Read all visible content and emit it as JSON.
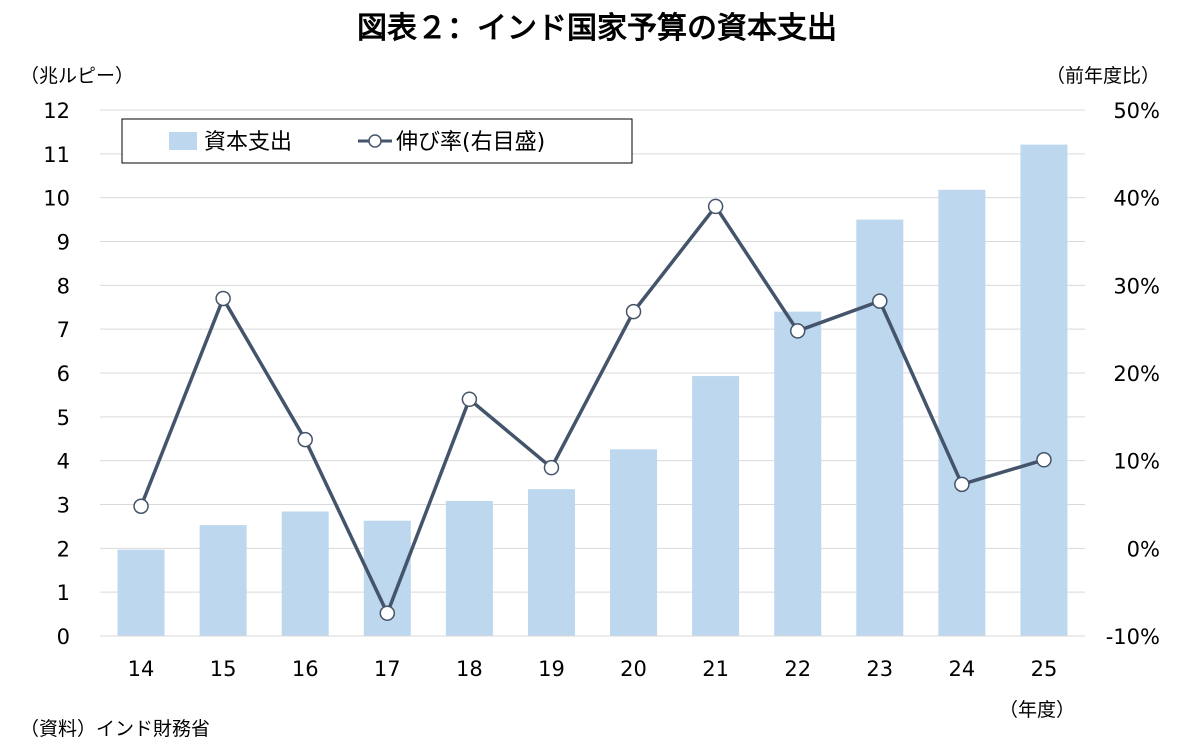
{
  "chart_data": {
    "type": "bar",
    "title": "図表２：インド国家予算の資本支出",
    "left_axis_unit": "（兆ルピー）",
    "right_axis_unit": "（前年度比）",
    "xlabel": "（年度）",
    "source_note": "（資料）インド財務省",
    "categories": [
      "14",
      "15",
      "16",
      "17",
      "18",
      "19",
      "20",
      "21",
      "22",
      "23",
      "24",
      "25"
    ],
    "ylim_left": [
      0,
      12
    ],
    "ylim_right": [
      -10,
      50
    ],
    "yticks_left": [
      "0",
      "1",
      "2",
      "3",
      "4",
      "5",
      "6",
      "7",
      "8",
      "9",
      "10",
      "11",
      "12"
    ],
    "yticks_right": [
      "-10%",
      "0%",
      "10%",
      "20%",
      "30%",
      "40%",
      "50%"
    ],
    "grid": true,
    "legend_position": "top-left",
    "series": [
      {
        "name": "資本支出",
        "type": "bar",
        "axis": "left",
        "color": "#bdd7ee",
        "values": [
          1.97,
          2.53,
          2.84,
          2.63,
          3.08,
          3.35,
          4.26,
          5.93,
          7.4,
          9.5,
          10.18,
          11.21
        ]
      },
      {
        "name": "伸び率(右目盛)",
        "type": "line",
        "axis": "right",
        "color": "#44546a",
        "values": [
          4.8,
          28.5,
          12.4,
          -7.4,
          17.0,
          9.2,
          27.0,
          39.0,
          24.8,
          28.2,
          7.3,
          10.1
        ]
      }
    ]
  }
}
